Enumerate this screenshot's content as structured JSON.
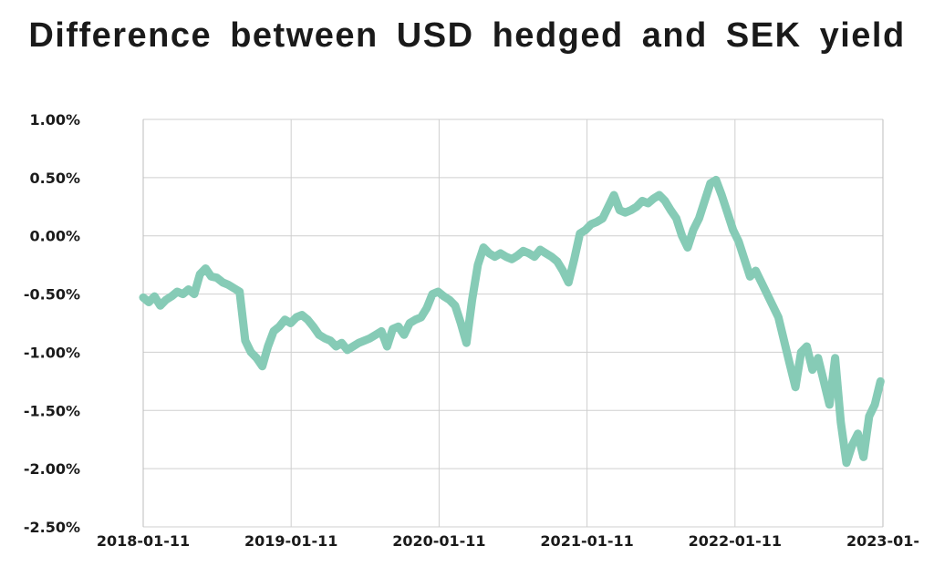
{
  "chart_data": {
    "type": "line",
    "title": "Difference between USD hedged and SEK yield",
    "xlabel": "",
    "ylabel": "",
    "x_tick_labels": [
      "2018-01-11",
      "2019-01-11",
      "2020-01-11",
      "2021-01-11",
      "2022-01-11",
      "2023-01-"
    ],
    "y_tick_labels": [
      "1.00%",
      "0.50%",
      "0.00%",
      "-0.50%",
      "-1.00%",
      "-1.50%",
      "-2.00%",
      "-2.50%"
    ],
    "ylim": [
      -2.5,
      1.0
    ],
    "xlim": [
      "2018-01-11",
      "2023-01-11"
    ],
    "grid": true,
    "line_color": "#86cbb6",
    "series": [
      {
        "name": "",
        "x": [
          "2018-01-11",
          "2018-01-25",
          "2018-02-08",
          "2018-02-22",
          "2018-03-08",
          "2018-03-22",
          "2018-04-05",
          "2018-04-19",
          "2018-05-03",
          "2018-05-17",
          "2018-05-31",
          "2018-06-14",
          "2018-06-28",
          "2018-07-12",
          "2018-07-26",
          "2018-08-09",
          "2018-08-23",
          "2018-09-06",
          "2018-09-20",
          "2018-10-04",
          "2018-10-18",
          "2018-11-01",
          "2018-11-15",
          "2018-11-29",
          "2018-12-13",
          "2018-12-27",
          "2019-01-10",
          "2019-01-24",
          "2019-02-07",
          "2019-02-21",
          "2019-03-07",
          "2019-03-21",
          "2019-04-04",
          "2019-04-18",
          "2019-05-02",
          "2019-05-16",
          "2019-05-30",
          "2019-06-13",
          "2019-06-27",
          "2019-07-11",
          "2019-07-25",
          "2019-08-08",
          "2019-08-22",
          "2019-09-05",
          "2019-09-19",
          "2019-10-03",
          "2019-10-17",
          "2019-10-31",
          "2019-11-14",
          "2019-11-28",
          "2019-12-12",
          "2019-12-26",
          "2020-01-09",
          "2020-01-23",
          "2020-02-06",
          "2020-02-20",
          "2020-03-05",
          "2020-03-19",
          "2020-04-02",
          "2020-04-16",
          "2020-04-30",
          "2020-05-14",
          "2020-05-28",
          "2020-06-11",
          "2020-06-25",
          "2020-07-09",
          "2020-07-23",
          "2020-08-06",
          "2020-08-20",
          "2020-09-03",
          "2020-09-17",
          "2020-10-01",
          "2020-10-15",
          "2020-10-29",
          "2020-11-12",
          "2020-11-26",
          "2020-12-10",
          "2020-12-24",
          "2021-01-07",
          "2021-01-21",
          "2021-02-04",
          "2021-02-18",
          "2021-03-04",
          "2021-03-18",
          "2021-04-01",
          "2021-04-15",
          "2021-04-29",
          "2021-05-13",
          "2021-05-27",
          "2021-06-10",
          "2021-06-24",
          "2021-07-08",
          "2021-07-22",
          "2021-08-05",
          "2021-08-19",
          "2021-09-02",
          "2021-09-16",
          "2021-09-30",
          "2021-10-14",
          "2021-10-28",
          "2021-11-11",
          "2021-11-25",
          "2021-12-09",
          "2021-12-23",
          "2022-01-06",
          "2022-01-20",
          "2022-02-03",
          "2022-02-17",
          "2022-03-03",
          "2022-03-17",
          "2022-03-31",
          "2022-04-14",
          "2022-04-28",
          "2022-05-12",
          "2022-05-26",
          "2022-06-09",
          "2022-06-23",
          "2022-07-07",
          "2022-07-21",
          "2022-08-04",
          "2022-08-18",
          "2022-09-01",
          "2022-09-15",
          "2022-09-29",
          "2022-10-13",
          "2022-10-27",
          "2022-11-10",
          "2022-11-24",
          "2022-12-08",
          "2022-12-22",
          "2023-01-05"
        ],
        "y": [
          -0.53,
          -0.57,
          -0.52,
          -0.6,
          -0.55,
          -0.52,
          -0.48,
          -0.5,
          -0.46,
          -0.5,
          -0.33,
          -0.28,
          -0.35,
          -0.36,
          -0.4,
          -0.42,
          -0.45,
          -0.48,
          -0.9,
          -1.0,
          -1.05,
          -1.12,
          -0.95,
          -0.82,
          -0.78,
          -0.72,
          -0.75,
          -0.7,
          -0.68,
          -0.72,
          -0.78,
          -0.85,
          -0.88,
          -0.9,
          -0.95,
          -0.92,
          -0.98,
          -0.95,
          -0.92,
          -0.9,
          -0.88,
          -0.85,
          -0.82,
          -0.95,
          -0.8,
          -0.78,
          -0.85,
          -0.75,
          -0.72,
          -0.7,
          -0.62,
          -0.5,
          -0.48,
          -0.52,
          -0.55,
          -0.6,
          -0.75,
          -0.92,
          -0.55,
          -0.25,
          -0.1,
          -0.15,
          -0.18,
          -0.15,
          -0.18,
          -0.2,
          -0.17,
          -0.13,
          -0.15,
          -0.18,
          -0.12,
          -0.15,
          -0.18,
          -0.22,
          -0.3,
          -0.4,
          -0.2,
          0.02,
          0.05,
          0.1,
          0.12,
          0.15,
          0.25,
          0.35,
          0.22,
          0.2,
          0.22,
          0.25,
          0.3,
          0.28,
          0.32,
          0.35,
          0.3,
          0.22,
          0.15,
          0.0,
          -0.1,
          0.05,
          0.15,
          0.3,
          0.45,
          0.48,
          0.35,
          0.2,
          0.05,
          -0.05,
          -0.2,
          -0.35,
          -0.3,
          -0.4,
          -0.5,
          -0.6,
          -0.7,
          -0.9,
          -1.1,
          -1.3,
          -1.0,
          -0.95,
          -1.15,
          -1.05,
          -1.25,
          -1.45,
          -1.05,
          -1.6,
          -1.95,
          -1.8,
          -1.7,
          -1.9,
          -1.55,
          -1.45,
          -1.25
        ]
      }
    ]
  }
}
